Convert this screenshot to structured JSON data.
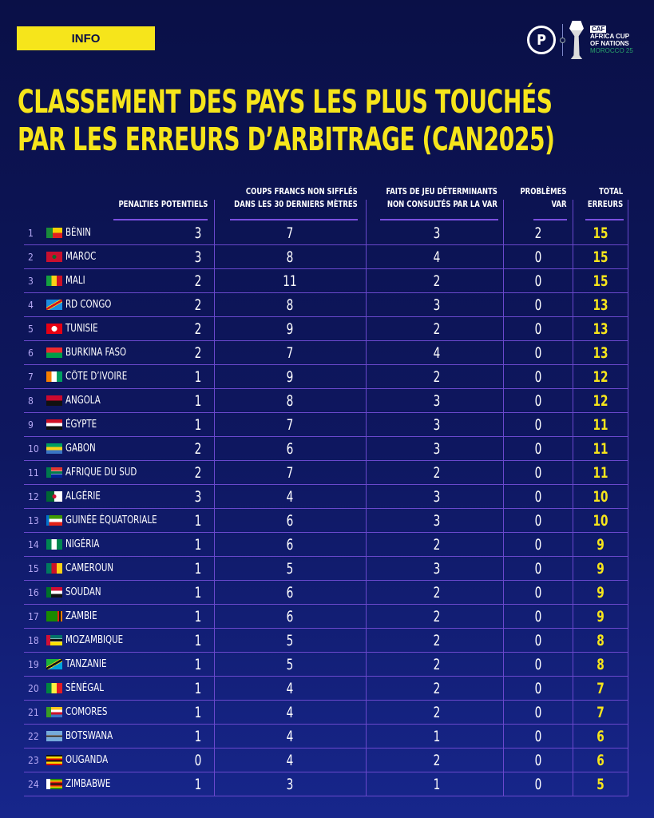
{
  "badge": "INFO",
  "logos": {
    "brand": "P",
    "caf": "CAF",
    "caf_line1": "AFRICA CUP",
    "caf_line2": "OF NATIONS",
    "caf_line3": "MOROCCO 25"
  },
  "title_line1": "CLASSEMENT DES PAYS LES PLUS TOUCHÉS",
  "title_line2": "PAR LES ERREURS D’ARBITRAGE (CAN2025)",
  "colors": {
    "accent": "#f6e51b",
    "background": "#0a1047",
    "grid": "#6a48cc"
  },
  "headers": {
    "penalties": "PENALTIES POTENTIELS",
    "coups_1": "COUPS FRANCS NON SIFFLÉS",
    "coups_2": "DANS LES 30 DERNIERS MÈTRES",
    "faits_1": "FAITS DE JEU DÉTERMINANTS",
    "faits_2": "NON CONSULTÉS PAR LA VAR",
    "var_1": "PROBLÈMES",
    "var_2": "VAR",
    "total_1": "TOTAL",
    "total_2": "ERREURS"
  },
  "rows": [
    {
      "rank": "1",
      "country": "BÉNIN",
      "flag": "benin",
      "pen": "3",
      "cf": "7",
      "fj": "3",
      "var": "2",
      "total": "15"
    },
    {
      "rank": "2",
      "country": "MAROC",
      "flag": "morocco",
      "pen": "3",
      "cf": "8",
      "fj": "4",
      "var": "0",
      "total": "15"
    },
    {
      "rank": "3",
      "country": "MALI",
      "flag": "mali",
      "pen": "2",
      "cf": "11",
      "fj": "2",
      "var": "0",
      "total": "15"
    },
    {
      "rank": "4",
      "country": "RD CONGO",
      "flag": "drc",
      "pen": "2",
      "cf": "8",
      "fj": "3",
      "var": "0",
      "total": "13"
    },
    {
      "rank": "5",
      "country": "TUNISIE",
      "flag": "tunisia",
      "pen": "2",
      "cf": "9",
      "fj": "2",
      "var": "0",
      "total": "13"
    },
    {
      "rank": "6",
      "country": "BURKINA FASO",
      "flag": "burkina",
      "pen": "2",
      "cf": "7",
      "fj": "4",
      "var": "0",
      "total": "13"
    },
    {
      "rank": "7",
      "country": "CÔTE D’IVOIRE",
      "flag": "ivory",
      "pen": "1",
      "cf": "9",
      "fj": "2",
      "var": "0",
      "total": "12"
    },
    {
      "rank": "8",
      "country": "ANGOLA",
      "flag": "angola",
      "pen": "1",
      "cf": "8",
      "fj": "3",
      "var": "0",
      "total": "12"
    },
    {
      "rank": "9",
      "country": "ÉGYPTE",
      "flag": "egypt",
      "pen": "1",
      "cf": "7",
      "fj": "3",
      "var": "0",
      "total": "11"
    },
    {
      "rank": "10",
      "country": "GABON",
      "flag": "gabon",
      "pen": "2",
      "cf": "6",
      "fj": "3",
      "var": "0",
      "total": "11"
    },
    {
      "rank": "11",
      "country": "AFRIQUE DU SUD",
      "flag": "rsa",
      "pen": "2",
      "cf": "7",
      "fj": "2",
      "var": "0",
      "total": "11"
    },
    {
      "rank": "12",
      "country": "ALGÉRIE",
      "flag": "algeria",
      "pen": "3",
      "cf": "4",
      "fj": "3",
      "var": "0",
      "total": "10"
    },
    {
      "rank": "13",
      "country": "GUINÉE ÉQUATORIALE",
      "flag": "eqguinea",
      "pen": "1",
      "cf": "6",
      "fj": "3",
      "var": "0",
      "total": "10"
    },
    {
      "rank": "14",
      "country": "NIGÉRIA",
      "flag": "nigeria",
      "pen": "1",
      "cf": "6",
      "fj": "2",
      "var": "0",
      "total": "9"
    },
    {
      "rank": "15",
      "country": "CAMEROUN",
      "flag": "cameroon",
      "pen": "1",
      "cf": "5",
      "fj": "3",
      "var": "0",
      "total": "9"
    },
    {
      "rank": "16",
      "country": "SOUDAN",
      "flag": "sudan",
      "pen": "1",
      "cf": "6",
      "fj": "2",
      "var": "0",
      "total": "9"
    },
    {
      "rank": "17",
      "country": "ZAMBIE",
      "flag": "zambia",
      "pen": "1",
      "cf": "6",
      "fj": "2",
      "var": "0",
      "total": "9"
    },
    {
      "rank": "18",
      "country": "MOZAMBIQUE",
      "flag": "mozambique",
      "pen": "1",
      "cf": "5",
      "fj": "2",
      "var": "0",
      "total": "8"
    },
    {
      "rank": "19",
      "country": "TANZANIE",
      "flag": "tanzania",
      "pen": "1",
      "cf": "5",
      "fj": "2",
      "var": "0",
      "total": "8"
    },
    {
      "rank": "20",
      "country": "SÉNÉGAL",
      "flag": "senegal",
      "pen": "1",
      "cf": "4",
      "fj": "2",
      "var": "0",
      "total": "7"
    },
    {
      "rank": "21",
      "country": "COMORES",
      "flag": "comoros",
      "pen": "1",
      "cf": "4",
      "fj": "2",
      "var": "0",
      "total": "7"
    },
    {
      "rank": "22",
      "country": "BOTSWANA",
      "flag": "botswana",
      "pen": "1",
      "cf": "4",
      "fj": "1",
      "var": "0",
      "total": "6"
    },
    {
      "rank": "23",
      "country": "OUGANDA",
      "flag": "uganda",
      "pen": "0",
      "cf": "4",
      "fj": "2",
      "var": "0",
      "total": "6"
    },
    {
      "rank": "24",
      "country": "ZIMBABWE",
      "flag": "zimbabwe",
      "pen": "1",
      "cf": "3",
      "fj": "1",
      "var": "0",
      "total": "5"
    }
  ]
}
